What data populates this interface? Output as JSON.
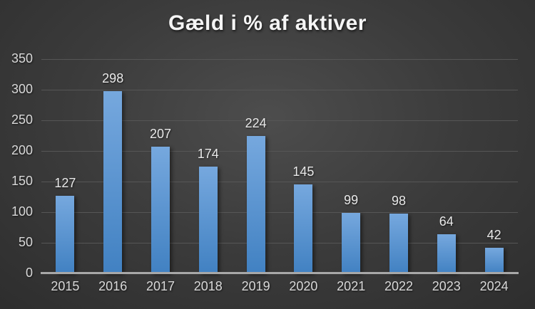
{
  "chart_data": {
    "type": "bar",
    "title": "Gæld i % af aktiver",
    "categories": [
      "2015",
      "2016",
      "2017",
      "2018",
      "2019",
      "2020",
      "2021",
      "2022",
      "2023",
      "2024"
    ],
    "values": [
      127,
      298,
      207,
      174,
      224,
      145,
      99,
      98,
      64,
      42
    ],
    "xlabel": "",
    "ylabel": "",
    "ylim": [
      0,
      350
    ],
    "yticks": [
      0,
      50,
      100,
      150,
      200,
      250,
      300,
      350
    ],
    "grid": true,
    "legend": "none",
    "data_labels": true,
    "colors": {
      "bar_top": "#76a8de",
      "bar_bottom": "#4181c2",
      "gridline": "#565656",
      "axis_line": "#a8a8a8",
      "title_text": "#f5f5f5",
      "tick_text": "#d9d9d9",
      "data_label_text": "#e9e9e9",
      "background_center": "#4d4d4d",
      "background_edge": "#2a2a2a"
    }
  }
}
